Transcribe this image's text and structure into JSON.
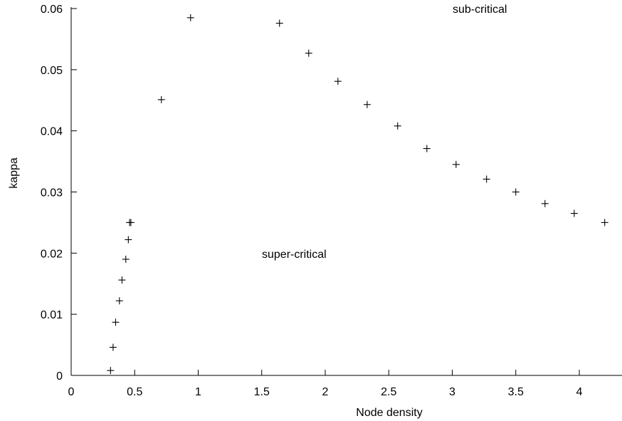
{
  "chart_data": {
    "type": "scatter",
    "title": "",
    "xlabel": "Node density",
    "ylabel": "kappa",
    "xlim": [
      0,
      4.3
    ],
    "ylim": [
      0,
      0.06
    ],
    "xticks": [
      0,
      0.5,
      1,
      1.5,
      2,
      2.5,
      3,
      3.5,
      4
    ],
    "xtick_labels": [
      "0",
      "0.5",
      "1",
      "1.5",
      "2",
      "2.5",
      "3",
      "3.5",
      "4"
    ],
    "yticks": [
      0,
      0.01,
      0.02,
      0.03,
      0.04,
      0.05,
      0.06
    ],
    "ytick_labels": [
      "0",
      "0.01",
      "0.02",
      "0.03",
      "0.04",
      "0.05",
      "0.06"
    ],
    "grid": false,
    "marker": "+",
    "series": [
      {
        "x": [
          0.31,
          0.33,
          0.35,
          0.38,
          0.4,
          0.43,
          0.45,
          0.46,
          0.47,
          0.71,
          0.94,
          1.64,
          1.87,
          2.1,
          2.33,
          2.57,
          2.8,
          3.03,
          3.27,
          3.5,
          3.73,
          3.96,
          4.2
        ],
        "y": [
          0.0008,
          0.0046,
          0.0087,
          0.0122,
          0.0156,
          0.019,
          0.0222,
          0.025,
          0.025,
          0.0451,
          0.0585,
          0.0576,
          0.0527,
          0.0481,
          0.0443,
          0.0408,
          0.0371,
          0.0345,
          0.0321,
          0.03,
          0.0281,
          0.0265,
          0.025
        ]
      }
    ],
    "annotations": [
      {
        "text": "sub-critical"
      },
      {
        "text": "super-critical"
      }
    ]
  }
}
